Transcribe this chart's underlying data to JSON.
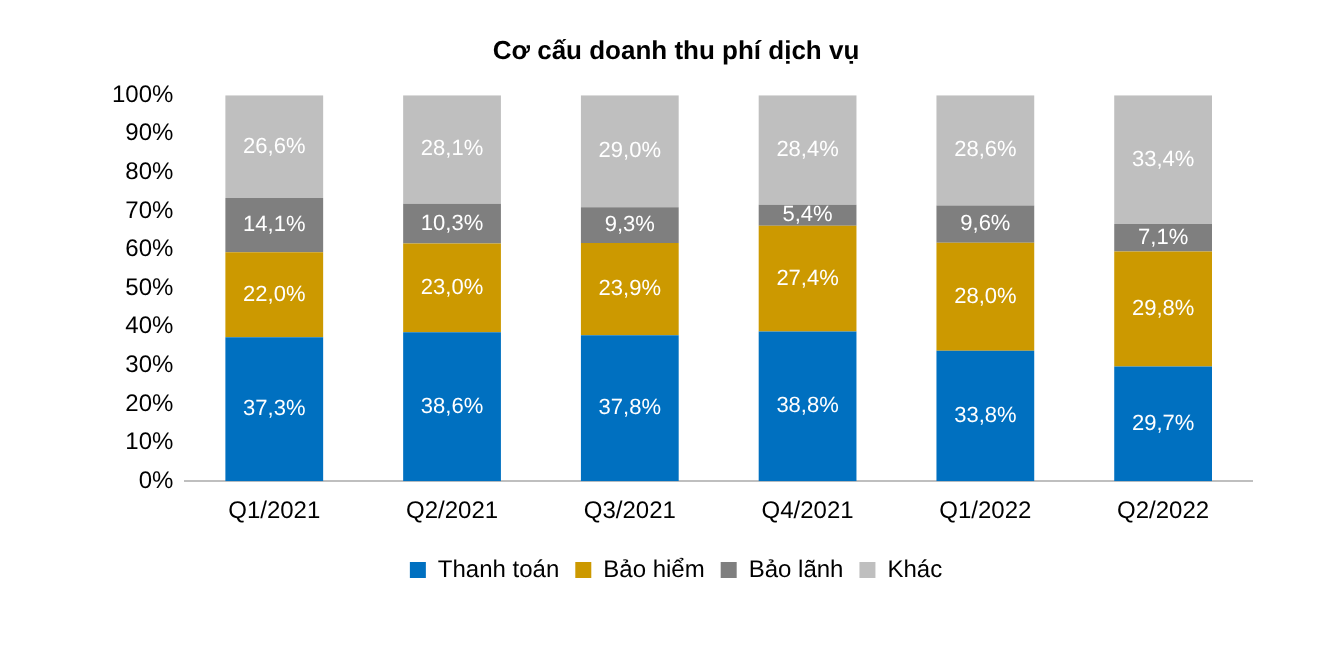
{
  "chart_data": {
    "type": "bar",
    "title": "Cơ cấu doanh thu phí dịch vụ",
    "stacked": true,
    "legend": "bottom",
    "grid": false,
    "categories": [
      "Q1/2021",
      "Q2/2021",
      "Q3/2021",
      "Q4/2021",
      "Q1/2022",
      "Q2/2022"
    ],
    "ylim": [
      0,
      100
    ],
    "yticks": [
      {
        "value": 0,
        "label": "0%"
      },
      {
        "value": 10,
        "label": "10%"
      },
      {
        "value": 20,
        "label": "20%"
      },
      {
        "value": 30,
        "label": "30%"
      },
      {
        "value": 40,
        "label": "40%"
      },
      {
        "value": 50,
        "label": "50%"
      },
      {
        "value": 60,
        "label": "60%"
      },
      {
        "value": 70,
        "label": "70%"
      },
      {
        "value": 80,
        "label": "80%"
      },
      {
        "value": 90,
        "label": "90%"
      },
      {
        "value": 100,
        "label": "100%"
      }
    ],
    "series": [
      {
        "name": "Thanh toán",
        "color": "#0070c0",
        "values": [
          37.3,
          38.6,
          37.8,
          38.8,
          33.8,
          29.7
        ],
        "value_labels": [
          "37,3%",
          "38,6%",
          "37,8%",
          "38,8%",
          "33,8%",
          "29,7%"
        ]
      },
      {
        "name": "Bảo hiểm",
        "color": "#cc9900",
        "values": [
          22.0,
          23.0,
          23.9,
          27.4,
          28.0,
          29.8
        ],
        "value_labels": [
          "22,0%",
          "23,0%",
          "23,9%",
          "27,4%",
          "28,0%",
          "29,8%"
        ]
      },
      {
        "name": "Bảo lãnh",
        "color": "#7f7f7f",
        "values": [
          14.1,
          10.3,
          9.3,
          5.4,
          9.6,
          7.1
        ],
        "value_labels": [
          "14,1%",
          "10,3%",
          "9,3%",
          "5,4%",
          "9,6%",
          "7,1%"
        ]
      },
      {
        "name": "Khác",
        "color": "#bfbfbf",
        "values": [
          26.6,
          28.1,
          29.0,
          28.4,
          28.6,
          33.4
        ],
        "value_labels": [
          "26,6%",
          "28,1%",
          "29,0%",
          "28,4%",
          "28,6%",
          "33,4%"
        ]
      }
    ]
  }
}
